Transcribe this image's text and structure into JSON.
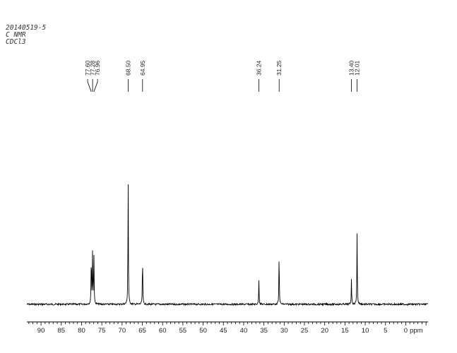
{
  "header": {
    "sample_id": "20140519-5",
    "experiment": "C NMR",
    "solvent": "CDCl3"
  },
  "chart_data": {
    "type": "line",
    "title": "",
    "xlabel": "ppm",
    "ylabel": "",
    "x_reversed": true,
    "xlim": [
      93.5,
      -5.5
    ],
    "ticks": [
      90,
      85,
      80,
      75,
      70,
      65,
      60,
      55,
      50,
      45,
      40,
      35,
      30,
      25,
      20,
      15,
      10,
      5,
      0
    ],
    "peaks": [
      {
        "ppm": 77.6,
        "height": 0.41,
        "label": "77.60"
      },
      {
        "ppm": 77.28,
        "height": 0.42,
        "label": "77.28"
      },
      {
        "ppm": 76.96,
        "height": 0.42,
        "label": "76.96"
      },
      {
        "ppm": 68.5,
        "height": 1.0,
        "label": "68.50"
      },
      {
        "ppm": 64.95,
        "height": 0.39,
        "label": "64.95"
      },
      {
        "ppm": 36.24,
        "height": 0.2,
        "label": "36.24"
      },
      {
        "ppm": 31.25,
        "height": 0.41,
        "label": "31.25"
      },
      {
        "ppm": 13.4,
        "height": 0.21,
        "label": "13.40"
      },
      {
        "ppm": 12.01,
        "height": 0.58,
        "label": "12.01"
      }
    ],
    "colors": {
      "trace": "#000000",
      "axis": "#000000",
      "text": "#222222"
    }
  }
}
